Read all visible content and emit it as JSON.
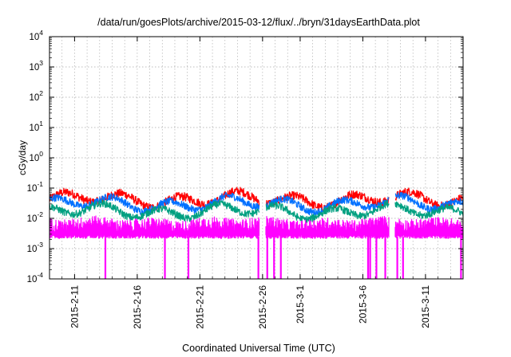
{
  "chart_data": {
    "type": "line",
    "title": "/data/run/goesPlots/archive/2015-03-12/flux/../bryn/31daysEarthData.plot",
    "xlabel": "Coordinated Universal Time (UTC)",
    "ylabel": "cGy/day",
    "y_scale": "log",
    "ylim": [
      0.0001,
      10000
    ],
    "y_ticks": [
      {
        "value": 0.0001,
        "base": "10",
        "exp": "-4"
      },
      {
        "value": 0.001,
        "base": "10",
        "exp": "-3"
      },
      {
        "value": 0.01,
        "base": "10",
        "exp": "-2"
      },
      {
        "value": 0.1,
        "base": "10",
        "exp": "-1"
      },
      {
        "value": 1,
        "base": "10",
        "exp": "0"
      },
      {
        "value": 10,
        "base": "10",
        "exp": "1"
      },
      {
        "value": 100,
        "base": "10",
        "exp": "2"
      },
      {
        "value": 1000,
        "base": "10",
        "exp": "3"
      },
      {
        "value": 10000,
        "base": "10",
        "exp": "4"
      }
    ],
    "xlim": [
      "2015-02-09",
      "2015-03-14"
    ],
    "x_ticks": [
      "2015-2-11",
      "2015-2-16",
      "2015-2-21",
      "2015-2-26",
      "2015-3-1",
      "2015-3-6",
      "2015-3-11"
    ],
    "x_tick_dates": [
      "2015-02-11",
      "2015-02-16",
      "2015-02-21",
      "2015-02-26",
      "2015-03-01",
      "2015-03-06",
      "2015-03-11"
    ],
    "grid": true,
    "data_gaps": [
      [
        "2015-02-25T18:00",
        "2015-02-26T06:00"
      ],
      [
        "2015-03-08T02:00",
        "2015-03-08T14:00"
      ]
    ],
    "series": [
      {
        "color": "#ff0000",
        "typical": 0.042,
        "spread": 0.14
      },
      {
        "color": "#0070ff",
        "typical": 0.03,
        "spread": 0.12
      },
      {
        "color": "#00a080",
        "typical": 0.017,
        "spread": 0.12
      },
      {
        "color": "#ff00ff",
        "typical": 0.006,
        "spread": 0.22
      }
    ],
    "magenta_floor": 0.0025,
    "magenta_dropouts": [
      "2015-02-13T11:00",
      "2015-02-18T05:00",
      "2015-02-20T02:00",
      "2015-02-25T16:00",
      "2015-02-26T09:00",
      "2015-02-26T22:00",
      "2015-02-27T11:00",
      "2015-03-06T10:00",
      "2015-03-06T14:00",
      "2015-03-07T02:00",
      "2015-03-07T19:00",
      "2015-03-08T18:00",
      "2015-03-09T05:00",
      "2015-03-13T20:00"
    ]
  }
}
